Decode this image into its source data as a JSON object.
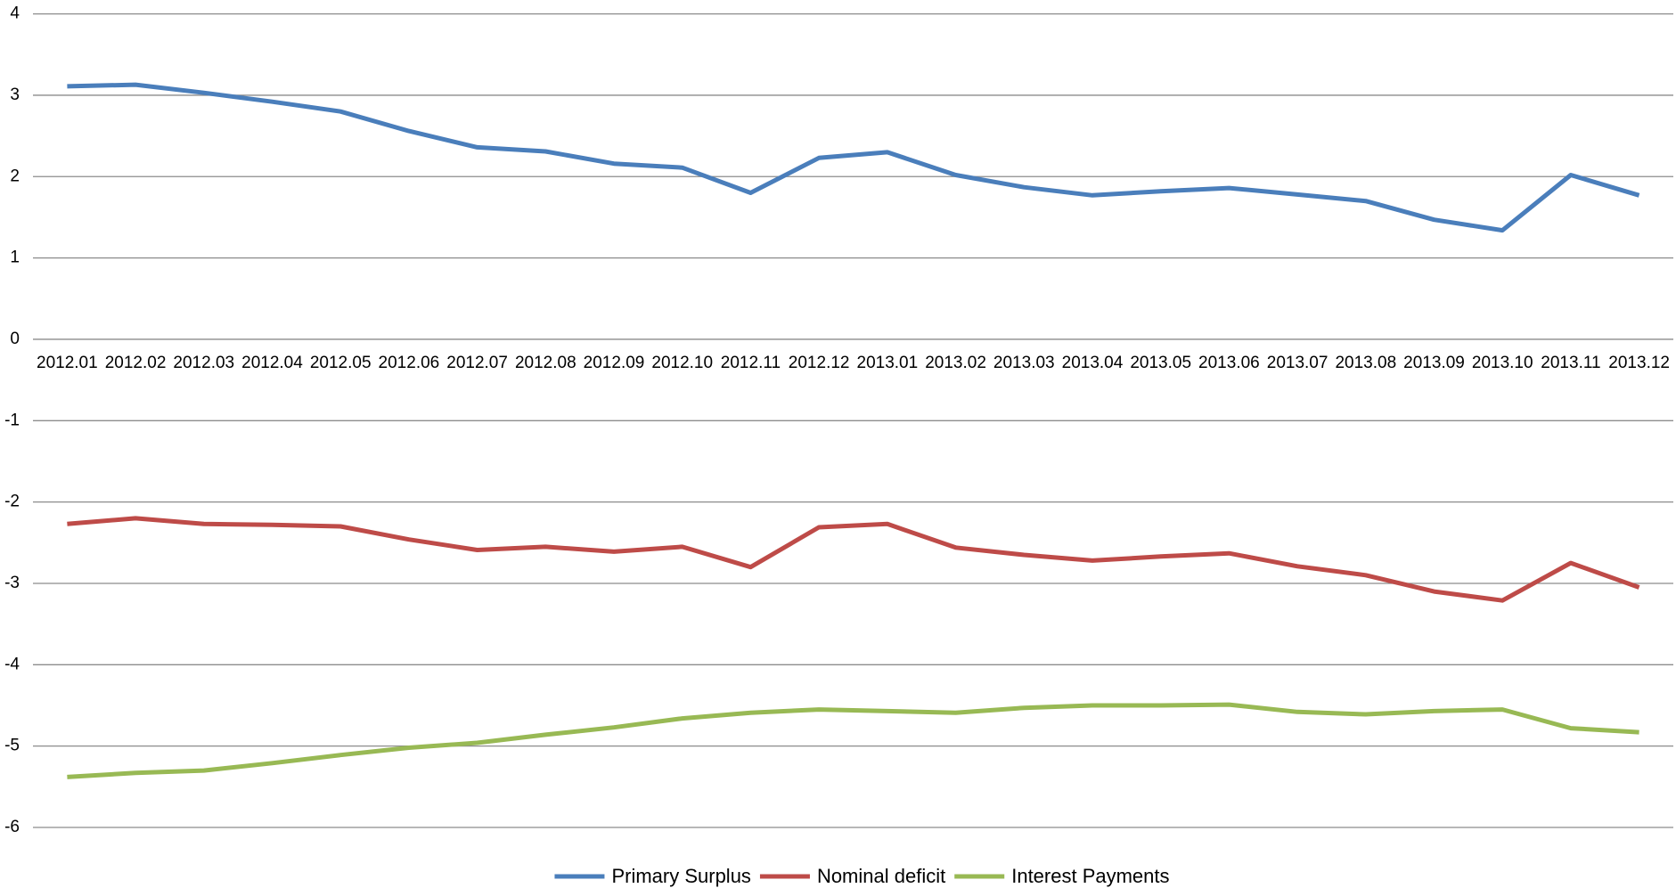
{
  "chart_data": {
    "type": "line",
    "categories": [
      "2012.01",
      "2012.02",
      "2012.03",
      "2012.04",
      "2012.05",
      "2012.06",
      "2012.07",
      "2012.08",
      "2012.09",
      "2012.10",
      "2012.11",
      "2012.12",
      "2013.01",
      "2013.02",
      "2013.03",
      "2013.04",
      "2013.05",
      "2013.06",
      "2013.07",
      "2013.08",
      "2013.09",
      "2013.10",
      "2013.11",
      "2013.12"
    ],
    "series": [
      {
        "name": "Primary Surplus",
        "color": "#4a7ebb",
        "values": [
          3.11,
          3.13,
          3.03,
          2.92,
          2.8,
          2.56,
          2.36,
          2.31,
          2.16,
          2.11,
          1.8,
          2.23,
          2.3,
          2.02,
          1.87,
          1.77,
          1.82,
          1.86,
          1.78,
          1.7,
          1.47,
          1.34,
          2.02,
          1.77
        ]
      },
      {
        "name": "Nominal deficit",
        "color": "#be4b48",
        "values": [
          -2.27,
          -2.2,
          -2.27,
          -2.28,
          -2.3,
          -2.46,
          -2.59,
          -2.55,
          -2.61,
          -2.55,
          -2.8,
          -2.31,
          -2.27,
          -2.56,
          -2.65,
          -2.72,
          -2.67,
          -2.63,
          -2.79,
          -2.9,
          -3.1,
          -3.21,
          -2.75,
          -3.05
        ]
      },
      {
        "name": "Interest Payments",
        "color": "#98b954",
        "values": [
          -5.38,
          -5.33,
          -5.3,
          -5.21,
          -5.11,
          -5.02,
          -4.96,
          -4.86,
          -4.77,
          -4.66,
          -4.59,
          -4.55,
          -4.57,
          -4.59,
          -4.53,
          -4.5,
          -4.5,
          -4.49,
          -4.58,
          -4.61,
          -4.57,
          -4.55,
          -4.78,
          -4.83
        ]
      }
    ],
    "ylim": [
      -6,
      4
    ],
    "yticks": [
      -6,
      -5,
      -4,
      -3,
      -2,
      -1,
      0,
      1,
      2,
      3,
      4
    ],
    "grid": true,
    "legend": "bottom"
  }
}
